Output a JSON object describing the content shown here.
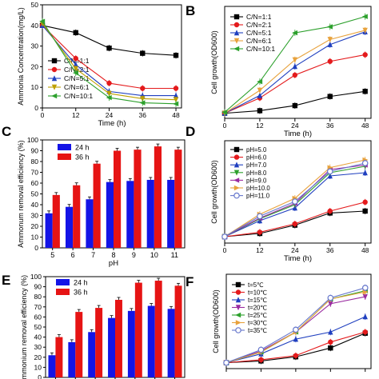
{
  "chart_data": [
    {
      "panel": "A",
      "type": "line",
      "x": [
        0,
        12,
        24,
        36,
        48
      ],
      "xlabel": "Time (h)",
      "ylabel": "Ammonia  Concentration(mg/L)",
      "xlim": [
        0,
        50
      ],
      "ylim": [
        0,
        50
      ],
      "xticks": [
        "0",
        "12",
        "24",
        "36",
        "48"
      ],
      "yticks": [
        "0",
        "10",
        "20",
        "30",
        "40",
        "50"
      ],
      "legend_position": "bottom-left",
      "series": [
        {
          "name": "C/N=1:1",
          "color": "#000000",
          "marker": "square",
          "values": [
            40,
            36.5,
            29,
            26.5,
            25.5
          ]
        },
        {
          "name": "C/N=2:1",
          "color": "#e41a1c",
          "marker": "circle",
          "values": [
            40,
            24,
            12,
            9.5,
            9.5
          ]
        },
        {
          "name": "C/N=5:1",
          "color": "#1f3fbf",
          "marker": "triangle",
          "values": [
            40,
            21,
            8,
            6,
            6
          ]
        },
        {
          "name": "C/N=6:1",
          "color": "#bfa000",
          "marker": "triangle-down",
          "values": [
            41,
            19,
            7,
            4.5,
            4
          ]
        },
        {
          "name": "C/N=10:1",
          "color": "#2ca02c",
          "marker": "triangle-left",
          "values": [
            42,
            17,
            5,
            2.5,
            2
          ]
        }
      ]
    },
    {
      "panel": "B",
      "type": "line",
      "x": [
        0,
        12,
        24,
        36,
        48
      ],
      "xlabel": "Time (h)",
      "ylabel": "Cell growth(OD600)",
      "xlim": [
        0,
        50
      ],
      "ylim": [
        0,
        2.2
      ],
      "xticks": [
        "0",
        "12",
        "24",
        "36",
        "48"
      ],
      "legend_position": "top-left",
      "series": [
        {
          "name": "C/N=1:1",
          "color": "#000000",
          "marker": "square",
          "values": [
            0.1,
            0.15,
            0.25,
            0.43,
            0.53
          ]
        },
        {
          "name": "C/N=2:1",
          "color": "#e41a1c",
          "marker": "circle",
          "values": [
            0.1,
            0.4,
            0.85,
            1.12,
            1.25
          ]
        },
        {
          "name": "C/N=5:1",
          "color": "#1f3fbf",
          "marker": "triangle",
          "values": [
            0.1,
            0.45,
            1.02,
            1.45,
            1.7
          ]
        },
        {
          "name": "C/N=6:1",
          "color": "#e8a23c",
          "marker": "triangle-down",
          "values": [
            0.1,
            0.55,
            1.15,
            1.55,
            1.73
          ]
        },
        {
          "name": "C/N=10:1",
          "color": "#2ca02c",
          "marker": "triangle-left",
          "values": [
            0.12,
            0.72,
            1.68,
            1.8,
            2.0
          ]
        }
      ]
    },
    {
      "panel": "C",
      "type": "bar",
      "categories": [
        "5",
        "6",
        "7",
        "8",
        "9",
        "10",
        "11"
      ],
      "xlabel": "pH",
      "ylabel": "Ammonum removal efficiency (%)",
      "ylim": [
        0,
        100
      ],
      "yticks": [
        "0",
        "10",
        "20",
        "30",
        "40",
        "50",
        "60",
        "70",
        "80",
        "90",
        "100"
      ],
      "legend_position": "top-left",
      "series": [
        {
          "name": "24 h",
          "color": "#1414e6",
          "values": [
            32,
            38,
            45,
            61,
            62,
            63,
            63
          ]
        },
        {
          "name": "36 h",
          "color": "#e61414",
          "values": [
            49,
            58,
            78,
            90,
            91,
            94,
            91
          ]
        }
      ]
    },
    {
      "panel": "D",
      "type": "line",
      "x": [
        0,
        12,
        24,
        36,
        48
      ],
      "xlabel": "Time (h)",
      "ylabel": "Cell growth(OD600)",
      "xlim": [
        0,
        50
      ],
      "ylim": [
        0,
        1.6
      ],
      "xticks": [
        "0",
        "12",
        "24",
        "36",
        "48"
      ],
      "legend_position": "top-left",
      "series": [
        {
          "name": "pH=5.0",
          "color": "#000000",
          "marker": "square",
          "values": [
            0.1,
            0.15,
            0.28,
            0.47,
            0.5
          ]
        },
        {
          "name": "pH=6.0",
          "color": "#e41a1c",
          "marker": "circle",
          "values": [
            0.1,
            0.17,
            0.3,
            0.5,
            0.64
          ]
        },
        {
          "name": "pH=7.0",
          "color": "#1f3fbf",
          "marker": "triangle",
          "values": [
            0.1,
            0.35,
            0.55,
            1.05,
            1.1
          ]
        },
        {
          "name": "pH=8.0",
          "color": "#2ca02c",
          "marker": "triangle-down",
          "values": [
            0.1,
            0.38,
            0.6,
            1.1,
            1.2
          ]
        },
        {
          "name": "pH=9.0",
          "color": "#9a2ca0",
          "marker": "triangle-left",
          "values": [
            0.1,
            0.39,
            0.62,
            1.15,
            1.22
          ]
        },
        {
          "name": "pH=10.0",
          "color": "#e8a23c",
          "marker": "triangle-right",
          "values": [
            0.1,
            0.45,
            0.7,
            1.18,
            1.3
          ]
        },
        {
          "name": "pH=11.0",
          "color": "#6677cc",
          "marker": "circle-open",
          "values": [
            0.1,
            0.42,
            0.65,
            1.12,
            1.25
          ]
        }
      ]
    },
    {
      "panel": "E",
      "type": "bar",
      "categories": [
        "",
        "",
        "",
        "",
        "",
        "",
        ""
      ],
      "xlabel": "",
      "ylabel": "mmonium removal efficiency (%)",
      "ylim": [
        0,
        100
      ],
      "yticks": [
        "0",
        "10",
        "20",
        "30",
        "40",
        "50",
        "60",
        "70",
        "80",
        "90",
        "100"
      ],
      "legend_position": "top-left",
      "series": [
        {
          "name": "24 h",
          "color": "#1414e6",
          "values": [
            22,
            35,
            45,
            59,
            66,
            71,
            68
          ]
        },
        {
          "name": "36 h",
          "color": "#e61414",
          "values": [
            40,
            65,
            69,
            77,
            94,
            96,
            91
          ]
        }
      ]
    },
    {
      "panel": "F",
      "type": "line",
      "x": [
        0,
        12,
        24,
        36,
        48
      ],
      "xlabel": "",
      "ylabel": "Cell growth(OD600)",
      "xlim": [
        0,
        50
      ],
      "ylim": [
        0,
        1.6
      ],
      "xticks": [
        "0",
        "12",
        "24",
        "36",
        "48"
      ],
      "legend_position": "top-left",
      "series": [
        {
          "name": "t=5℃",
          "color": "#000000",
          "marker": "square",
          "values": [
            0.1,
            0.13,
            0.2,
            0.35,
            0.6
          ]
        },
        {
          "name": "t=10℃",
          "color": "#e41a1c",
          "marker": "circle",
          "values": [
            0.1,
            0.15,
            0.22,
            0.45,
            0.62
          ]
        },
        {
          "name": "t=15℃",
          "color": "#1f3fbf",
          "marker": "triangle",
          "values": [
            0.1,
            0.25,
            0.5,
            0.62,
            0.88
          ]
        },
        {
          "name": "t=20℃",
          "color": "#9a2ca0",
          "marker": "triangle-down",
          "values": [
            0.1,
            0.3,
            0.62,
            1.1,
            1.22
          ]
        },
        {
          "name": "t=25℃",
          "color": "#2ca02c",
          "marker": "triangle-left",
          "values": [
            0.1,
            0.28,
            0.62,
            1.18,
            1.32
          ]
        },
        {
          "name": "t=30℃",
          "color": "#e8a23c",
          "marker": "triangle-right",
          "values": [
            0.1,
            0.28,
            0.62,
            1.18,
            1.3
          ]
        },
        {
          "name": "t=35℃",
          "color": "#6677cc",
          "marker": "circle-open",
          "values": [
            0.1,
            0.32,
            0.66,
            1.2,
            1.37
          ]
        }
      ]
    }
  ],
  "panel_labels": {
    "A": "A",
    "B": "B",
    "C": "C",
    "D": "D",
    "E": "E",
    "F": "F"
  }
}
